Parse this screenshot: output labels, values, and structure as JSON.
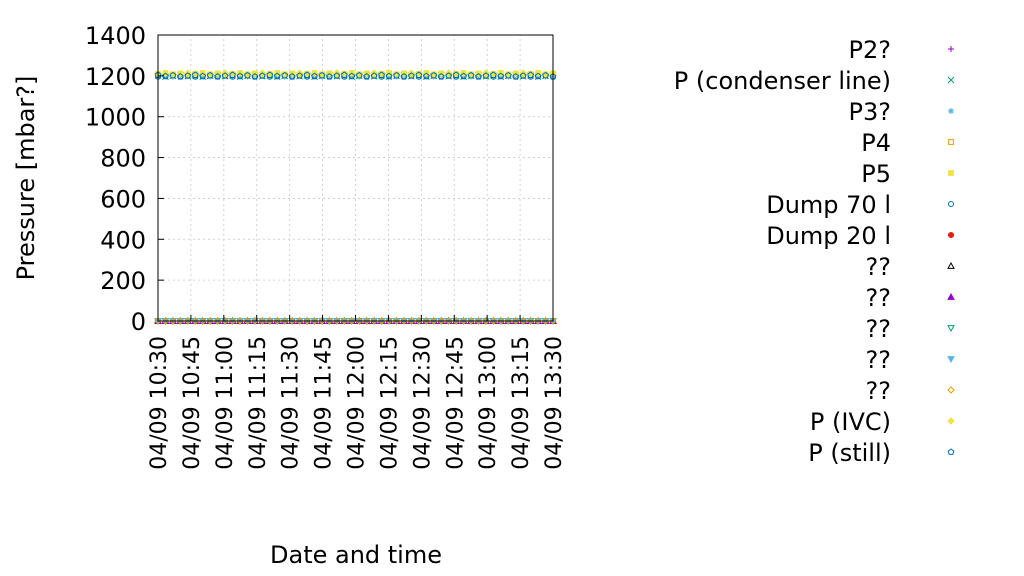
{
  "chart_data": {
    "type": "scatter",
    "xlabel": "Date and time",
    "ylabel": "Pressure [mbar?]",
    "ylim": [
      0,
      1400
    ],
    "yticks": [
      0,
      200,
      400,
      600,
      800,
      1000,
      1200,
      1400
    ],
    "xlim": [
      "04/09 10:30",
      "04/09 13:30"
    ],
    "xticks": [
      "04/09 10:30",
      "04/09 10:45",
      "04/09 11:00",
      "04/09 11:15",
      "04/09 11:30",
      "04/09 11:45",
      "04/09 12:00",
      "04/09 12:15",
      "04/09 12:30",
      "04/09 12:45",
      "04/09 13:00",
      "04/09 13:15",
      "04/09 13:30"
    ],
    "grid": true,
    "legend_position": "right",
    "series": [
      {
        "name": "P2?",
        "color": "#9400d3",
        "marker": "plus",
        "value": 0
      },
      {
        "name": "P (condenser line)",
        "color": "#009e73",
        "marker": "cross",
        "value": 1200
      },
      {
        "name": "P3?",
        "color": "#56b4e9",
        "marker": "star",
        "value": 1200
      },
      {
        "name": "P4",
        "color": "#e69f00",
        "marker": "square-open",
        "value": 0
      },
      {
        "name": "P5",
        "color": "#f0e442",
        "marker": "square-filled",
        "value": 1210
      },
      {
        "name": "Dump 70 l",
        "color": "#0072b2",
        "marker": "circle-open",
        "value": 1200
      },
      {
        "name": "Dump 20 l",
        "color": "#e51e10",
        "marker": "circle-filled",
        "value": 0
      },
      {
        "name": "??",
        "color": "#000000",
        "marker": "triangle-open",
        "value": 0
      },
      {
        "name": "??",
        "color": "#9400d3",
        "marker": "triangle-filled",
        "value": 0
      },
      {
        "name": "??",
        "color": "#009e73",
        "marker": "triangle-down-open",
        "value": 0
      },
      {
        "name": "??",
        "color": "#56b4e9",
        "marker": "triangle-down-filled",
        "value": 0
      },
      {
        "name": "??",
        "color": "#e69f00",
        "marker": "diamond-open",
        "value": 0
      },
      {
        "name": "P (IVC)",
        "color": "#f0e442",
        "marker": "diamond-filled",
        "value": 1210
      },
      {
        "name": "P (still)",
        "color": "#0072b2",
        "marker": "pentagon-open",
        "value": 1200
      }
    ]
  }
}
